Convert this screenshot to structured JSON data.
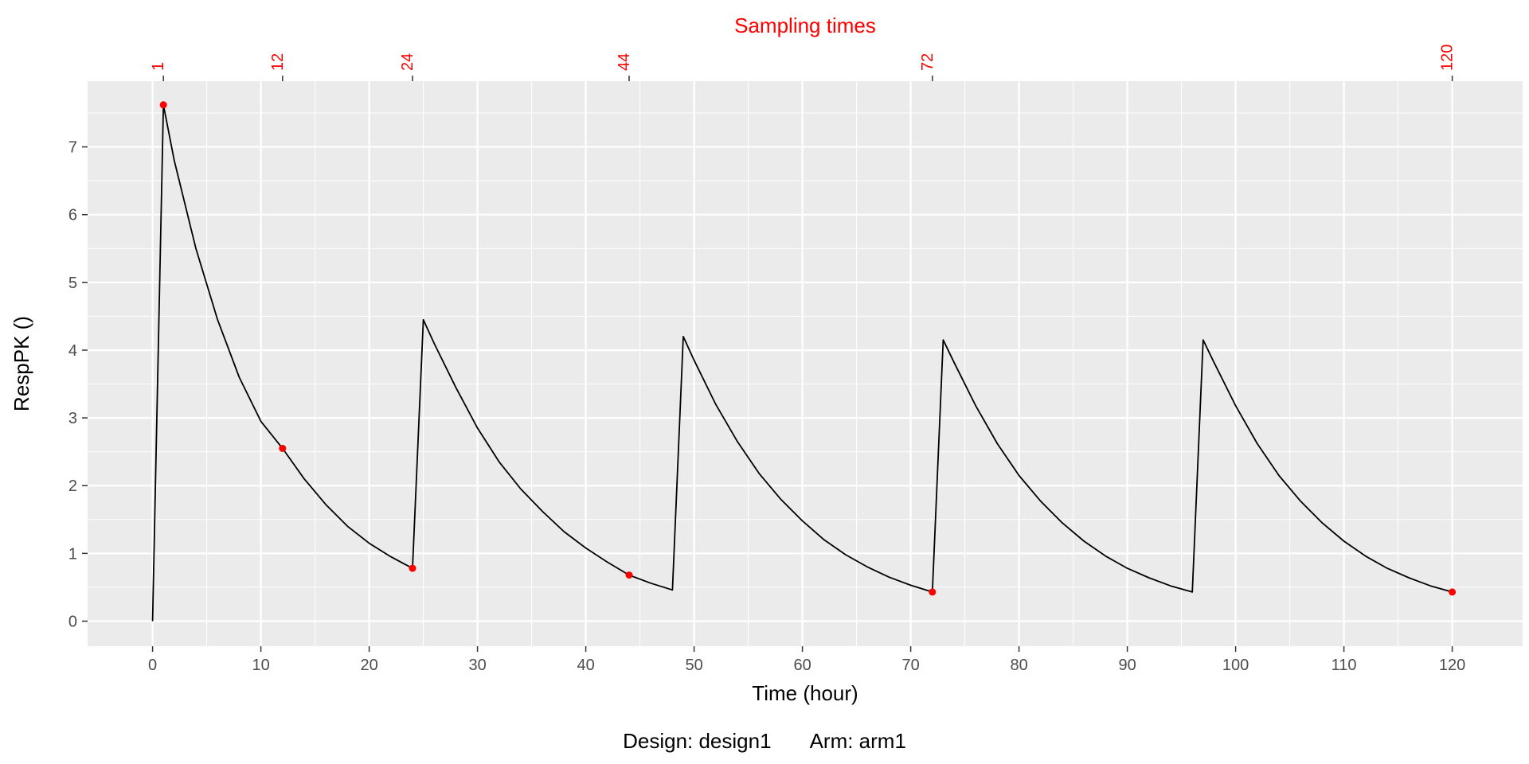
{
  "chart_data": {
    "type": "line",
    "title": "Sampling times",
    "xlabel": "Time (hour)",
    "ylabel": "RespPK ()",
    "xlim": [
      -6,
      126.5
    ],
    "ylim": [
      -0.37,
      7.97
    ],
    "x_ticks": [
      0,
      10,
      20,
      30,
      40,
      50,
      60,
      70,
      80,
      90,
      100,
      110,
      120
    ],
    "y_ticks": [
      0,
      1,
      2,
      3,
      4,
      5,
      6,
      7
    ],
    "top_ticks": [
      1,
      12,
      24,
      44,
      72,
      120
    ],
    "grid": true,
    "series": [
      {
        "role": "curve",
        "color": "#000000",
        "x": [
          0,
          1,
          2,
          4,
          6,
          8,
          10,
          12,
          14,
          16,
          18,
          20,
          22,
          24,
          25,
          26,
          28,
          30,
          32,
          34,
          36,
          38,
          40,
          42,
          44,
          46,
          48,
          49,
          50,
          52,
          54,
          56,
          58,
          60,
          62,
          64,
          66,
          68,
          70,
          72,
          73,
          74,
          76,
          78,
          80,
          82,
          84,
          86,
          88,
          90,
          92,
          94,
          96,
          97,
          98,
          100,
          102,
          104,
          106,
          108,
          110,
          112,
          114,
          116,
          118,
          120
        ],
        "y": [
          0,
          7.62,
          6.8,
          5.5,
          4.45,
          3.6,
          2.95,
          2.55,
          2.1,
          1.72,
          1.4,
          1.15,
          0.95,
          0.78,
          4.45,
          4.1,
          3.45,
          2.85,
          2.35,
          1.95,
          1.62,
          1.32,
          1.08,
          0.87,
          0.68,
          0.56,
          0.46,
          4.2,
          3.85,
          3.2,
          2.65,
          2.18,
          1.8,
          1.48,
          1.2,
          0.98,
          0.8,
          0.65,
          0.53,
          0.43,
          4.15,
          3.82,
          3.18,
          2.62,
          2.15,
          1.77,
          1.45,
          1.18,
          0.96,
          0.78,
          0.64,
          0.52,
          0.43,
          4.15,
          3.82,
          3.18,
          2.62,
          2.15,
          1.77,
          1.45,
          1.18,
          0.96,
          0.78,
          0.64,
          0.52,
          0.43
        ]
      },
      {
        "role": "samples",
        "color": "#ff0000",
        "x": [
          1,
          12,
          24,
          44,
          72,
          120
        ],
        "y": [
          7.62,
          2.55,
          0.78,
          0.68,
          0.43,
          0.43
        ]
      }
    ]
  },
  "caption": {
    "design": "Design: design1",
    "arm": "Arm: arm1"
  },
  "colors": {
    "panel": "#ebebeb",
    "grid": "#ffffff",
    "accent": "#ff0000",
    "axis_text": "#4d4d4d"
  }
}
